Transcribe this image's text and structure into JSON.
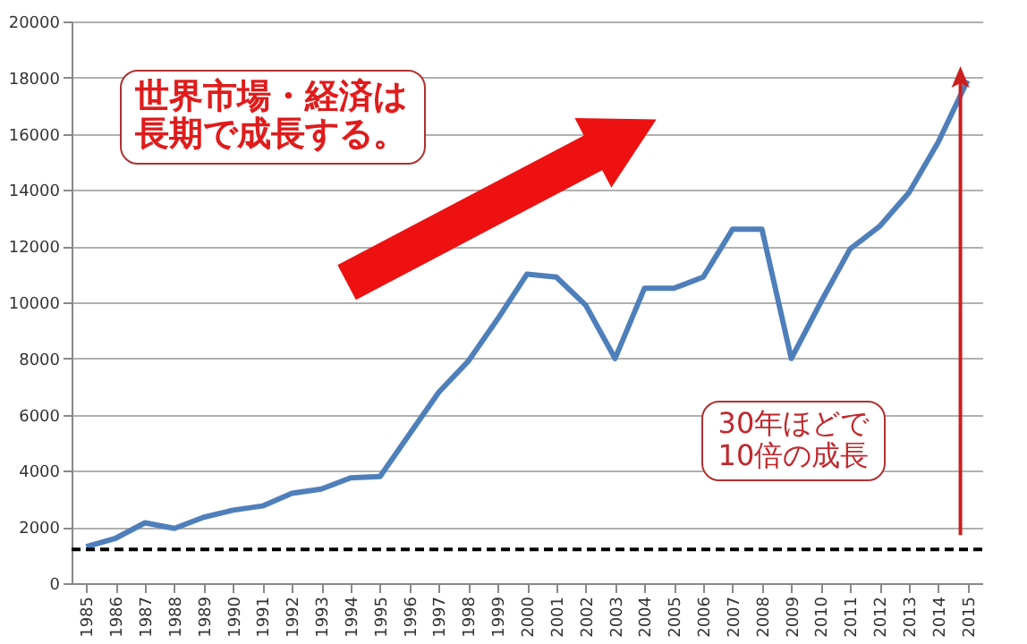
{
  "chart_data": {
    "type": "line",
    "categories": [
      "1985",
      "1986",
      "1987",
      "1988",
      "1989",
      "1990",
      "1991",
      "1992",
      "1993",
      "1994",
      "1995",
      "1996",
      "1997",
      "1998",
      "1999",
      "2000",
      "2001",
      "2002",
      "2003",
      "2004",
      "2005",
      "2006",
      "2007",
      "2008",
      "2009",
      "2010",
      "2011",
      "2012",
      "2013",
      "2014",
      "2015"
    ],
    "series": [
      {
        "color": "#4f7fba",
        "values": [
          1300,
          1600,
          2150,
          1950,
          2350,
          2600,
          2750,
          3200,
          3350,
          3750,
          3800,
          5300,
          6800,
          7900,
          9400,
          11000,
          10900,
          9900,
          8000,
          10500,
          10500,
          10900,
          12600,
          12600,
          8000,
          10000,
          11900,
          12700,
          13900,
          15700,
          17900
        ]
      }
    ],
    "ylim": [
      0,
      20000
    ],
    "yticks": [
      0,
      2000,
      4000,
      6000,
      8000,
      10000,
      12000,
      14000,
      16000,
      18000,
      20000
    ],
    "grid": "y",
    "ref_lines": [
      {
        "axis": "y",
        "value": 1200,
        "color": "#000000",
        "line_style": "dashed"
      }
    ],
    "annotations": [
      "世界市場・経済は長期で成長する。",
      "30年ほどで10倍の成長"
    ]
  }
}
